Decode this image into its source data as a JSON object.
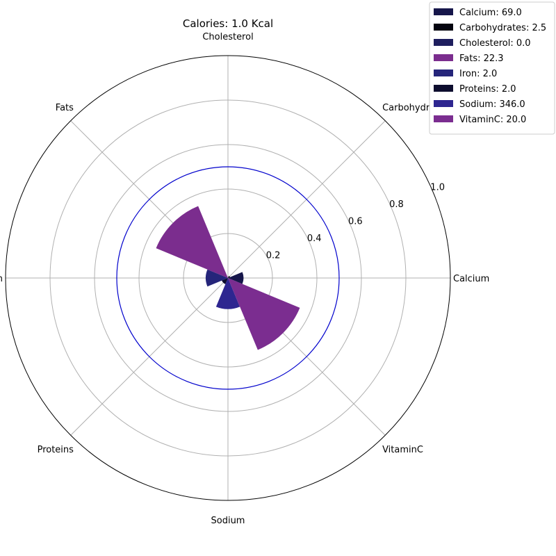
{
  "chart_data": {
    "type": "polar-bar",
    "title": "Calories: 1.0 Kcal",
    "categories": [
      "Calcium",
      "Carbohydrates",
      "Cholesterol",
      "Fats",
      "Iron",
      "Proteins",
      "Sodium",
      "VitaminC"
    ],
    "raw_values": [
      69.0,
      2.5,
      0.0,
      22.3,
      2.0,
      2.0,
      346.0,
      20.0
    ],
    "radii": [
      0.07,
      0.01,
      0.0,
      0.35,
      0.1,
      0.03,
      0.14,
      0.35
    ],
    "legend": [
      "Calcium: 69.0",
      "Carbohydrates: 2.5",
      "Cholesterol: 0.0",
      "Fats: 22.3",
      "Iron: 2.0",
      "Proteins: 2.0",
      "Sodium: 346.0",
      "VitaminC: 20.0"
    ],
    "colors": [
      "#16164a",
      "#04040f",
      "#1e1e5e",
      "#7b2d8e",
      "#25257a",
      "#0d0d2e",
      "#2e2690",
      "#7b2d90"
    ],
    "rlim": [
      0,
      1.0
    ],
    "rticks": [
      "0.2",
      "0.4",
      "0.6",
      "0.8",
      "1.0"
    ],
    "reference_circle": 0.5,
    "reference_color": "#0000cc",
    "grid": true,
    "legend_position": "upper-right"
  }
}
